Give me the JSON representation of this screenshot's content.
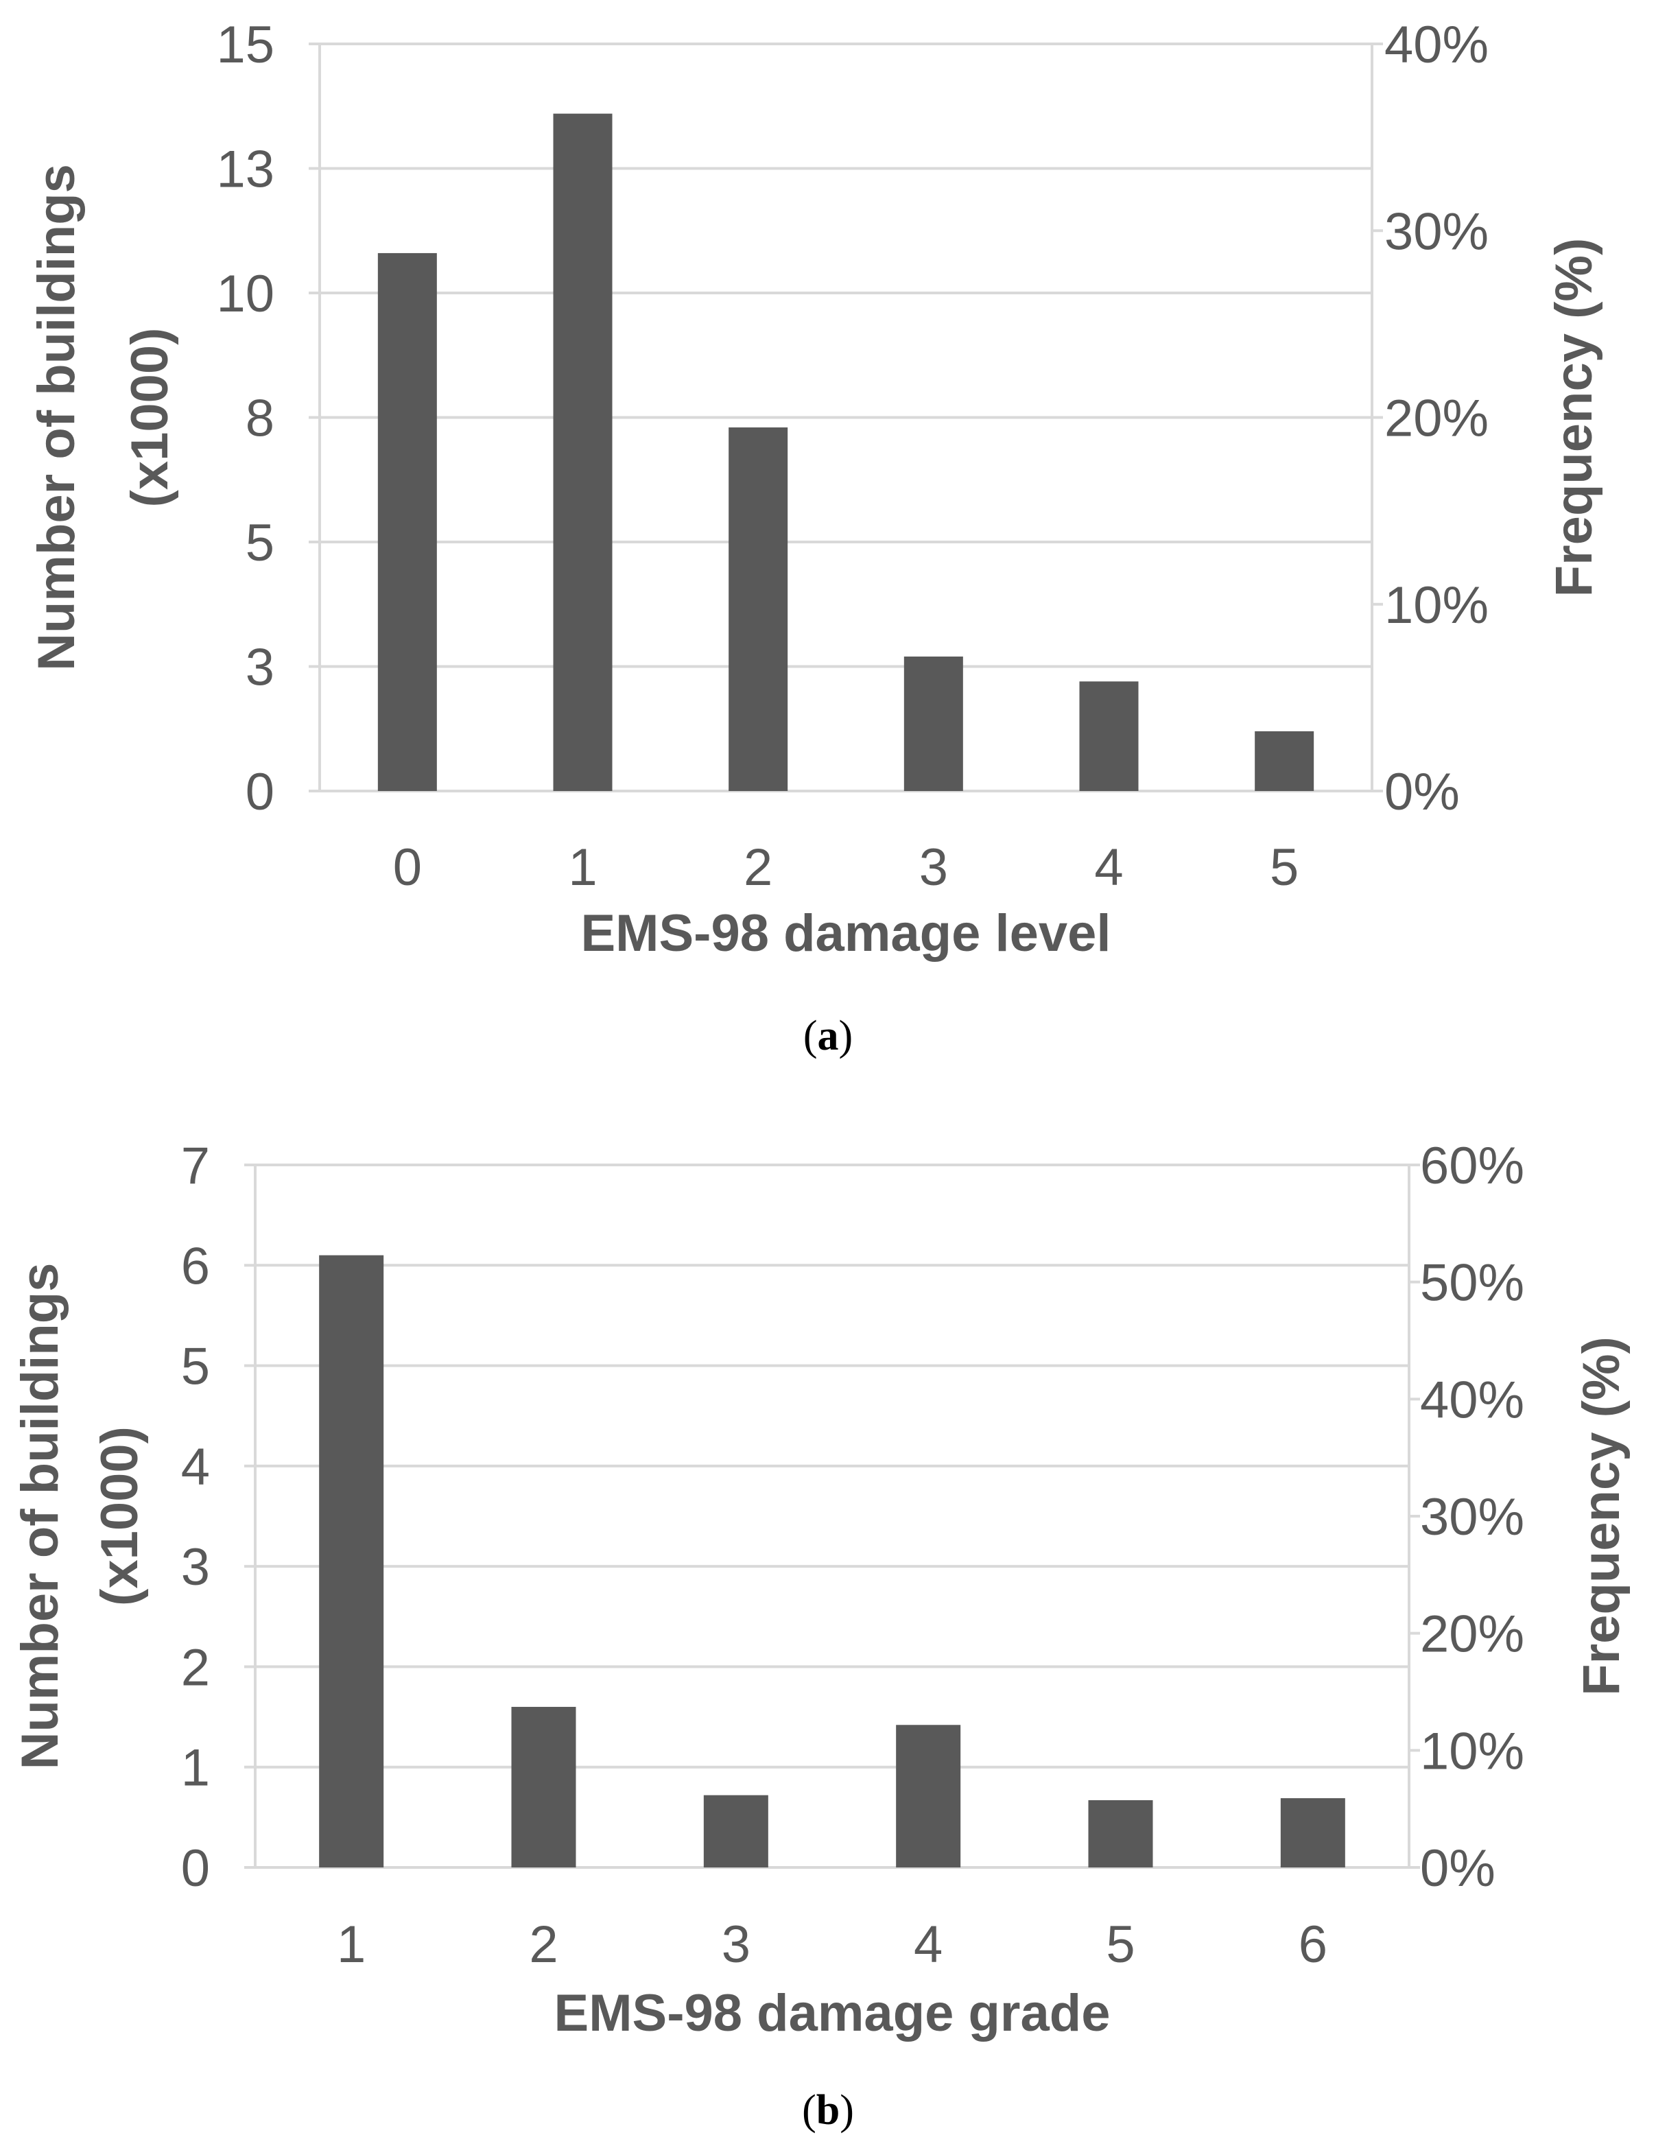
{
  "colors": {
    "bar": "#595959",
    "grid": "#d9d9d9",
    "text": "#595959"
  },
  "chart_data": [
    {
      "type": "bar",
      "caption_prefix": "(",
      "caption_letter": "a",
      "caption_suffix": ")",
      "categories": [
        "0",
        "1",
        "2",
        "3",
        "4",
        "5"
      ],
      "values": [
        10.8,
        13.6,
        7.3,
        2.7,
        2.2,
        1.2
      ],
      "xlabel": "EMS-98 damage level",
      "ylabel_line1": "Number of buildings",
      "ylabel_line2": "(x1000)",
      "ylabel_right": "Frequency (%)",
      "ylim": [
        0,
        15
      ],
      "yticks": [
        0,
        2.5,
        5,
        7.5,
        10,
        12.5,
        15
      ],
      "ytick_labels": [
        "0",
        "3",
        "5",
        "8",
        "10",
        "13",
        "15"
      ],
      "y2lim": [
        0,
        40
      ],
      "y2ticks": [
        0,
        10,
        20,
        30,
        40
      ],
      "y2tick_labels": [
        "0%",
        "10%",
        "20%",
        "30%",
        "40%"
      ],
      "grid": true
    },
    {
      "type": "bar",
      "caption_prefix": "(",
      "caption_letter": "b",
      "caption_suffix": ")",
      "categories": [
        "1",
        "2",
        "3",
        "4",
        "5",
        "6"
      ],
      "values": [
        6.1,
        1.6,
        0.72,
        1.42,
        0.67,
        0.69
      ],
      "xlabel": "EMS-98 damage grade",
      "ylabel_line1": "Number of buildings",
      "ylabel_line2": "(x1000)",
      "ylabel_right": "Frequency (%)",
      "ylim": [
        0,
        7
      ],
      "yticks": [
        0,
        1,
        2,
        3,
        4,
        5,
        6,
        7
      ],
      "ytick_labels": [
        "0",
        "1",
        "2",
        "3",
        "4",
        "5",
        "6",
        "7"
      ],
      "y2lim": [
        0,
        60
      ],
      "y2ticks": [
        0,
        10,
        20,
        30,
        40,
        50,
        60
      ],
      "y2tick_labels": [
        "0%",
        "10%",
        "20%",
        "30%",
        "40%",
        "50%",
        "60%"
      ],
      "grid": true
    }
  ]
}
